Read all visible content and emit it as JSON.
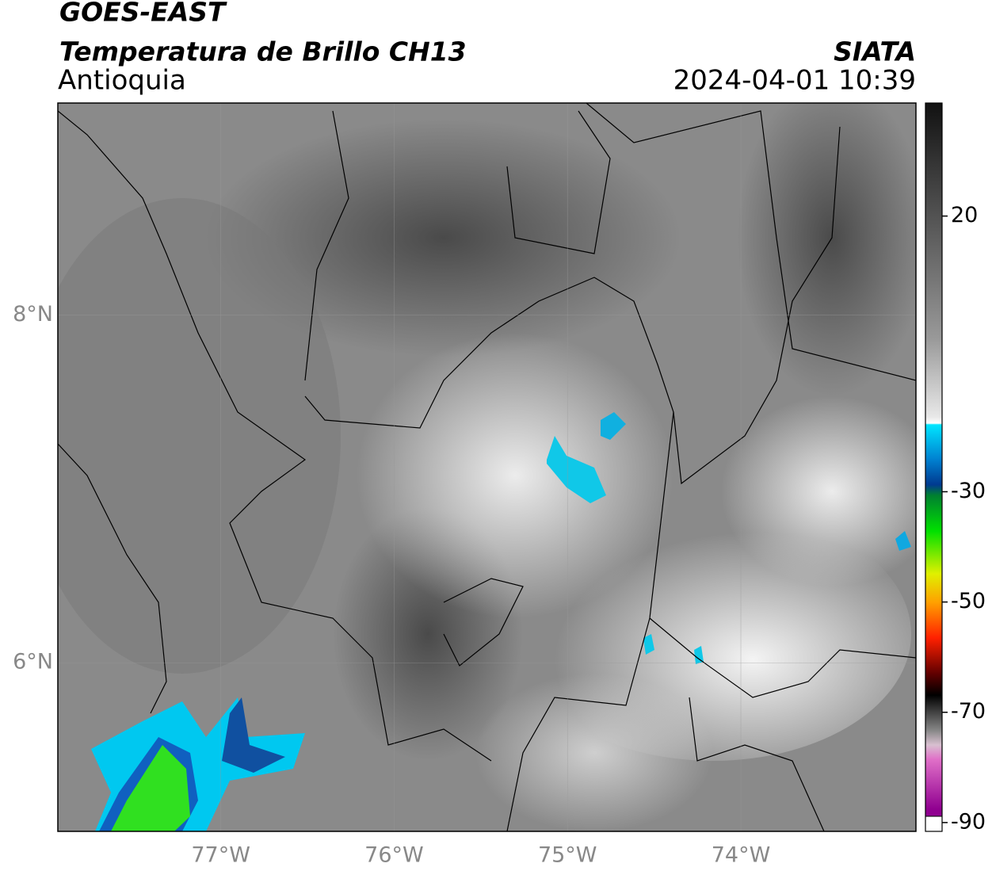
{
  "header": {
    "title": "GOES-EAST",
    "subtitle": "Temperatura de Brillo CH13",
    "region": "Antioquia",
    "source": "SIATA",
    "datetime": "2024-04-01 10:39"
  },
  "map": {
    "xlim": [
      -77.94,
      -72.99
    ],
    "ylim": [
      5.03,
      9.22
    ],
    "xticks": [
      {
        "value": -77,
        "label": "77°W"
      },
      {
        "value": -76,
        "label": "76°W"
      },
      {
        "value": -75,
        "label": "75°W"
      },
      {
        "value": -74,
        "label": "74°W"
      }
    ],
    "yticks": [
      {
        "value": 6,
        "label": "6°N"
      },
      {
        "value": 8,
        "label": "8°N"
      }
    ],
    "grid": true
  },
  "colorbar": {
    "lim": [
      -91.6,
      40.5
    ],
    "ticks": [
      20,
      -30,
      -50,
      -70,
      -90
    ]
  }
}
